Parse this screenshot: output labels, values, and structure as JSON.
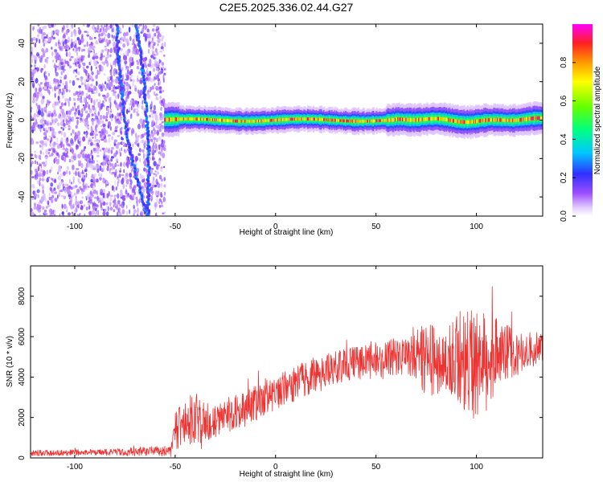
{
  "title": "C2E5.2025.336.02.44.G27",
  "colors": {
    "snr_line": "#ee3333",
    "axis": "#000000",
    "tick_label": "#000000"
  },
  "chart_data": [
    {
      "type": "heatmap",
      "xlabel": "Height of straight line (km)",
      "ylabel": "Frequency (Hz)",
      "xlim": [
        -122,
        133
      ],
      "ylim": [
        -50,
        50
      ],
      "x_ticks": [
        -100,
        -50,
        0,
        50,
        100
      ],
      "y_ticks": [
        -40,
        -20,
        0,
        20,
        40
      ],
      "colorbar": {
        "label": "Normalized spectral amplitude",
        "range": [
          0,
          1
        ],
        "ticks": [
          "0.0",
          "0.2",
          "0.4",
          "0.6",
          "0.8"
        ],
        "colormap": "rainbow (white, purple, blue, cyan, green, yellow, orange, red, magenta)"
      },
      "features": {
        "noise_region_km": [
          -122,
          -55
        ],
        "signal_band_km": [
          -55,
          133
        ],
        "signal_band_center_hz": 0,
        "curved_trace_km": [
          -85,
          -60
        ]
      }
    },
    {
      "type": "line",
      "xlabel": "Height of straight line (km)",
      "ylabel": "SNR (10 * v/v)",
      "xlim": [
        -122,
        133
      ],
      "ylim": [
        0,
        9500
      ],
      "x_ticks": [
        -100,
        -50,
        0,
        50,
        100
      ],
      "y_ticks": [
        0,
        2000,
        4000,
        6000,
        8000
      ],
      "envelope": {
        "x": [
          -122,
          -100,
          -80,
          -60,
          -52,
          -50,
          -45,
          -40,
          -35,
          -30,
          -20,
          -10,
          0,
          10,
          20,
          30,
          40,
          50,
          55,
          60,
          65,
          70,
          75,
          80,
          85,
          90,
          95,
          100,
          105,
          110,
          115,
          120,
          125,
          133
        ],
        "mean": [
          250,
          260,
          280,
          330,
          350,
          1300,
          1800,
          1900,
          1700,
          1900,
          2200,
          2700,
          3300,
          3700,
          4100,
          4400,
          4700,
          4800,
          4900,
          5000,
          5000,
          5100,
          5000,
          4800,
          4700,
          5000,
          4900,
          4600,
          4900,
          5100,
          5200,
          5100,
          5300,
          5500
        ],
        "spread": [
          150,
          150,
          170,
          250,
          250,
          900,
          1200,
          1400,
          1000,
          900,
          900,
          900,
          900,
          900,
          900,
          900,
          900,
          900,
          900,
          1000,
          1000,
          1200,
          2000,
          1800,
          1700,
          2200,
          2600,
          2800,
          2600,
          1800,
          1500,
          1100,
          900,
          800
        ]
      }
    }
  ]
}
